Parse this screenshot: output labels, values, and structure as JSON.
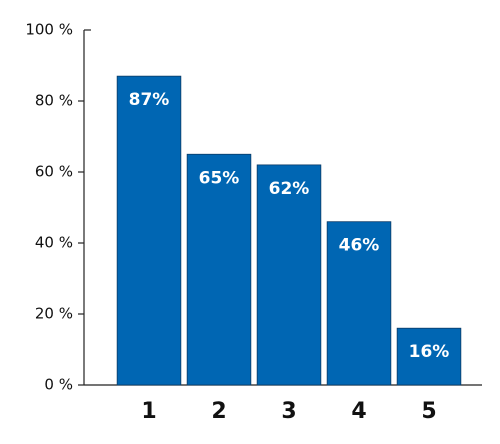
{
  "chart_data": {
    "type": "bar",
    "categories": [
      "1",
      "2",
      "3",
      "4",
      "5"
    ],
    "values": [
      87,
      65,
      62,
      46,
      16
    ],
    "value_labels": [
      "87%",
      "65%",
      "62%",
      "46%",
      "16%"
    ],
    "color": "#0066b3",
    "ylim": [
      0,
      100
    ],
    "yticks": [
      {
        "value": 0,
        "label": "0 %"
      },
      {
        "value": 20,
        "label": "20 %"
      },
      {
        "value": 40,
        "label": "40 %"
      },
      {
        "value": 60,
        "label": "60 %"
      },
      {
        "value": 80,
        "label": "80 %"
      },
      {
        "value": 100,
        "label": "100 %"
      }
    ],
    "grid": false
  }
}
